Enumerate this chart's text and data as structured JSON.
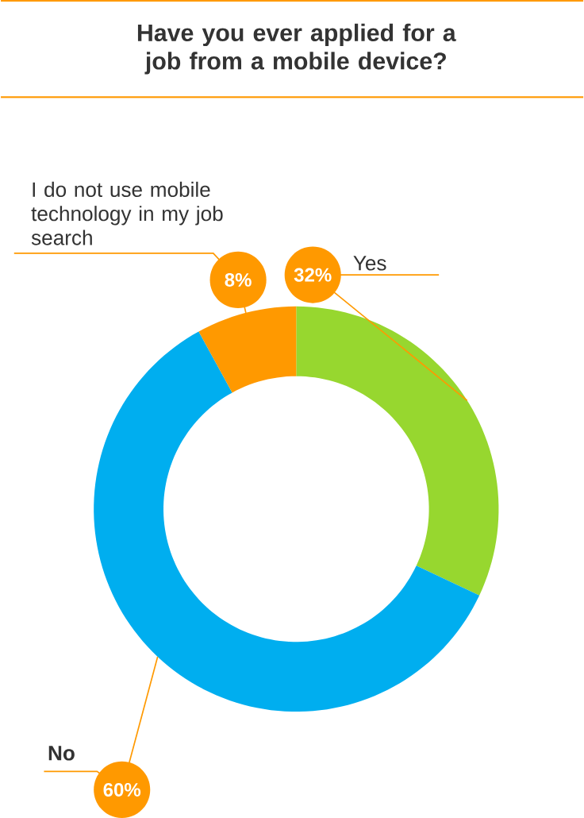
{
  "chart_data": {
    "type": "donut",
    "title": "Have you ever applied for a job from a mobile device?",
    "categories": [
      "Yes",
      "No",
      "I do not use mobile technology in my job search"
    ],
    "values": [
      32,
      60,
      8
    ],
    "value_labels": [
      "32%",
      "60%",
      "8%"
    ],
    "colors": [
      "#97d72f",
      "#00aeef",
      "#ff9900"
    ]
  }
}
